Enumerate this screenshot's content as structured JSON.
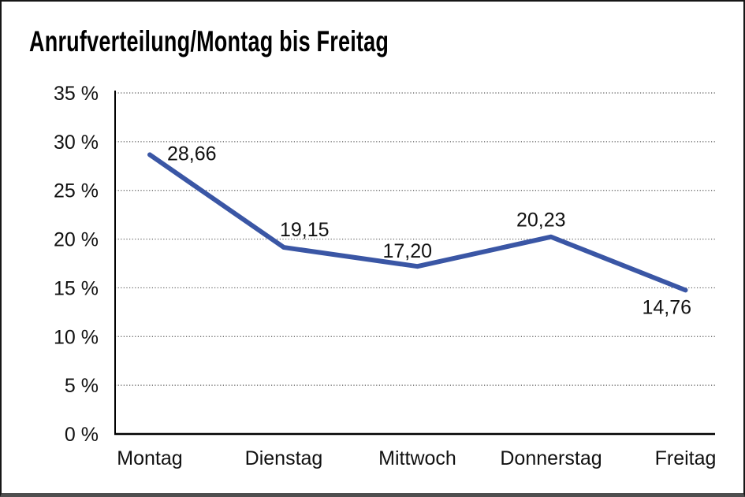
{
  "window": {
    "title": "Anrufverteilung/Montag bis Freitag"
  },
  "chart_data": {
    "type": "line",
    "title": "Anrufverteilung/Montag bis Freitag",
    "categories": [
      "Montag",
      "Dienstag",
      "Mittwoch",
      "Donnerstag",
      "Freitag"
    ],
    "series": [
      {
        "name": "Anrufverteilung",
        "values": [
          28.66,
          19.15,
          17.2,
          20.23,
          14.76
        ]
      }
    ],
    "value_labels": [
      "28,66",
      "19,15",
      "17,20",
      "20,23",
      "14,76"
    ],
    "y_ticks": [
      "35 %",
      "30 %",
      "25 %",
      "20 %",
      "15 %",
      "10 %",
      "5 %",
      "0 %"
    ],
    "y_tick_values": [
      35,
      30,
      25,
      20,
      15,
      10,
      5,
      0
    ],
    "ylim": [
      0,
      35
    ],
    "y_step": 5,
    "xlabel": "",
    "ylabel": "",
    "legend": "none",
    "grid": "horizontal-dotted",
    "colors": {
      "line": "#3A56A5",
      "axis": "#000000",
      "gridline": "#565656",
      "text": "#111111"
    }
  }
}
